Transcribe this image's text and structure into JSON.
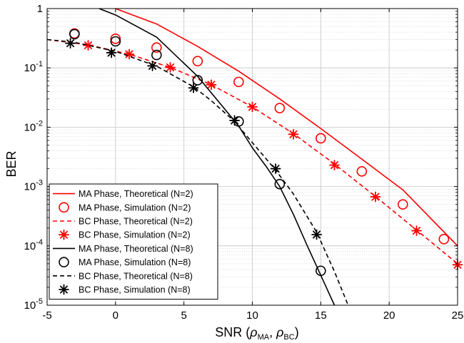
{
  "chart_data": {
    "type": "line",
    "xlabel": "SNR (ρMA, ρBC)",
    "xlabel_parts": {
      "prefix": "SNR (",
      "rho": "ρ",
      "sub1": "MA",
      "sep": ", ",
      "sub2": "BC",
      "suffix": ")"
    },
    "ylabel": "BER",
    "xlim": [
      -5,
      25
    ],
    "ylim": [
      1e-05,
      1
    ],
    "yscale": "log",
    "grid": true,
    "legend_position": "bottom-left",
    "x_ticks": [
      -5,
      0,
      5,
      10,
      15,
      20,
      25
    ],
    "x_tick_labels": [
      "-5",
      "0",
      "5",
      "10",
      "15",
      "20",
      "25"
    ],
    "y_ticks": [
      1e-05,
      0.0001,
      0.001,
      0.01,
      0.1,
      1
    ],
    "y_tick_labels": [
      {
        "base": "10",
        "exp": "-5"
      },
      {
        "base": "10",
        "exp": "-4"
      },
      {
        "base": "10",
        "exp": "-3"
      },
      {
        "base": "10",
        "exp": "-2"
      },
      {
        "base": "10",
        "exp": "-1"
      },
      {
        "base": "1",
        "exp": ""
      }
    ],
    "series": [
      {
        "name": "MA Phase, Theoretical (N=2)",
        "style": "solid",
        "marker": "none",
        "color": "#ff0000",
        "x": [
          0,
          3,
          6,
          9,
          12,
          15,
          18,
          21,
          25
        ],
        "y": [
          1.0,
          0.55,
          0.23,
          0.088,
          0.03,
          0.0095,
          0.0029,
          0.00088,
          0.0001
        ]
      },
      {
        "name": "MA Phase, Simulation (N=2)",
        "style": "none",
        "marker": "circle",
        "color": "#ff0000",
        "x": [
          -3,
          0,
          3,
          6,
          9,
          12,
          15,
          18,
          21,
          24
        ],
        "y": [
          0.38,
          0.31,
          0.22,
          0.13,
          0.058,
          0.021,
          0.0065,
          0.0018,
          0.0005,
          0.00013
        ]
      },
      {
        "name": "BC Phase, Theoretical (N=2)",
        "style": "dashed",
        "marker": "none",
        "color": "#ff0000",
        "x": [
          -5,
          -2,
          1,
          4,
          7,
          10,
          13,
          16,
          19,
          22,
          25
        ],
        "y": [
          0.3,
          0.245,
          0.17,
          0.102,
          0.052,
          0.022,
          0.0078,
          0.0024,
          0.00068,
          0.000185,
          5e-05
        ]
      },
      {
        "name": "BC Phase, Simulation (N=2)",
        "style": "none",
        "marker": "asterisk",
        "color": "#ff0000",
        "x": [
          -2,
          1,
          4,
          7,
          10,
          13,
          16,
          19,
          22,
          25
        ],
        "y": [
          0.24,
          0.17,
          0.102,
          0.052,
          0.022,
          0.0076,
          0.0023,
          0.00067,
          0.00018,
          4.8e-05
        ]
      },
      {
        "name": "MA Phase, Theoretical (N=8)",
        "style": "solid",
        "marker": "none",
        "color": "#000000",
        "x": [
          -1.2,
          0,
          3,
          6,
          8,
          9,
          10,
          11,
          12,
          13,
          14,
          15,
          16
        ],
        "y": [
          1.0,
          0.78,
          0.33,
          0.072,
          0.02,
          0.0105,
          0.0045,
          0.0022,
          0.001,
          0.00034,
          0.000102,
          3.2e-05,
          1e-05
        ]
      },
      {
        "name": "MA Phase, Simulation (N=8)",
        "style": "none",
        "marker": "circle",
        "color": "#000000",
        "x": [
          -3,
          0,
          3,
          6,
          9,
          12,
          15
        ],
        "y": [
          0.37,
          0.28,
          0.165,
          0.062,
          0.0125,
          0.0011,
          3.8e-05
        ]
      },
      {
        "name": "BC Phase, Theoretical (N=8)",
        "style": "dashed",
        "marker": "none",
        "color": "#000000",
        "x": [
          -5,
          -3,
          0,
          3,
          5.7,
          7,
          8.7,
          10,
          11.7,
          13,
          14.7,
          16,
          17
        ],
        "y": [
          0.3,
          0.27,
          0.19,
          0.107,
          0.048,
          0.028,
          0.0125,
          0.0055,
          0.0019,
          0.00075,
          0.00017,
          3.7e-05,
          1e-05
        ]
      },
      {
        "name": "BC Phase, Simulation (N=8)",
        "style": "none",
        "marker": "asterisk",
        "color": "#000000",
        "x": [
          -3.3,
          -0.3,
          2.7,
          5.7,
          8.7,
          11.7,
          14.7
        ],
        "y": [
          0.26,
          0.18,
          0.108,
          0.046,
          0.013,
          0.002,
          0.000155
        ]
      }
    ]
  }
}
